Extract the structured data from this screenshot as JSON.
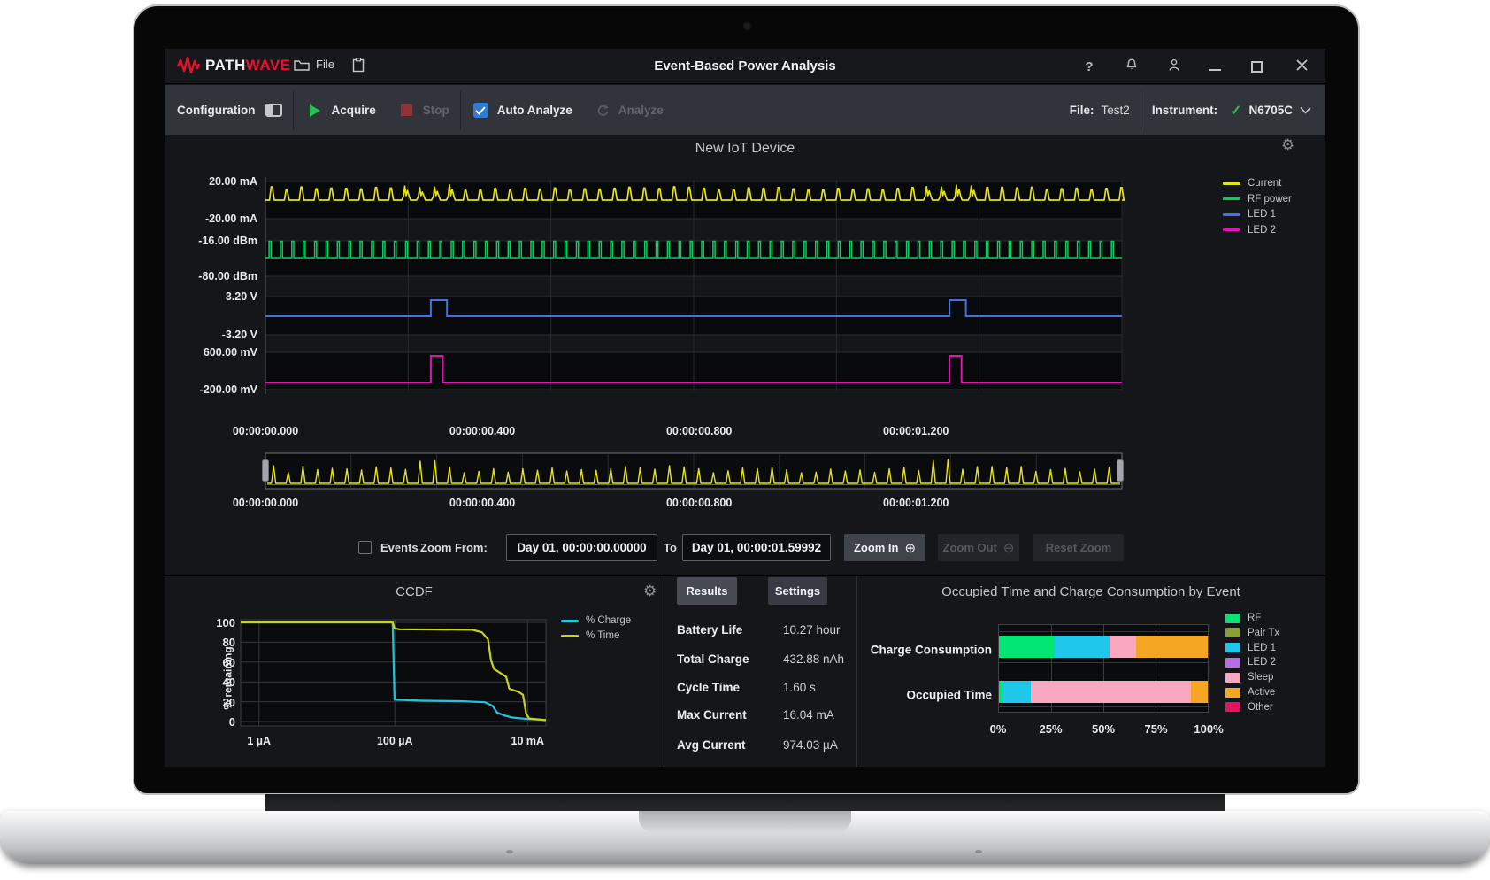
{
  "titlebar": {
    "logo_text_1": "PATH",
    "logo_text_2": "WAVE",
    "file_menu": "File",
    "title": "Event-Based Power Analysis",
    "help_label": "?"
  },
  "toolbar": {
    "configuration": "Configuration",
    "acquire": "Acquire",
    "stop": "Stop",
    "auto_analyze": "Auto Analyze",
    "analyze": "Analyze",
    "file_label": "File:",
    "file_value": "Test2",
    "instrument_label": "Instrument:",
    "instrument_value": "N6705C"
  },
  "scope": {
    "title": "New IoT Device",
    "y_axis_labels": [
      "20.00 mA",
      "-20.00 mA",
      "-16.00 dBm",
      "-80.00 dBm",
      "3.20 V",
      "-3.20 V",
      "600.00 mV",
      "-200.00 mV"
    ],
    "x_axis_labels": [
      "00:00:00.000",
      "00:00:00.400",
      "00:00:00.800",
      "00:00:01.200"
    ],
    "legend": [
      {
        "label": "Current",
        "color": "#e3e31c"
      },
      {
        "label": "RF power",
        "color": "#0fcb62"
      },
      {
        "label": "LED 1",
        "color": "#4273de"
      },
      {
        "label": "LED 2",
        "color": "#e211b9"
      }
    ]
  },
  "overview": {
    "x_axis_labels": [
      "00:00:00.000",
      "00:00:00.400",
      "00:00:00.800",
      "00:00:01.200"
    ]
  },
  "zoom_controls": {
    "events_label": "Events",
    "from_label": "Zoom From:",
    "from_value": "Day 01, 00:00:00.00000",
    "to_label": "To",
    "to_value": "Day 01, 00:00:01.59992",
    "zoom_in_label": "Zoom In",
    "zoom_out_label": "Zoom Out",
    "reset_label": "Reset Zoom"
  },
  "ccdf": {
    "title": "CCDF",
    "y_axis_title": "% remaining",
    "y_ticks": [
      "100",
      "80",
      "60",
      "40",
      "20",
      "0"
    ],
    "x_ticks": [
      "1 µA",
      "100 µA",
      "10 mA"
    ],
    "legend": [
      {
        "label": "% Charge",
        "color": "#23c4da"
      },
      {
        "label": "% Time",
        "color": "#c9d418"
      }
    ]
  },
  "results": {
    "tabs": [
      {
        "label": "Results"
      },
      {
        "label": "Settings"
      }
    ],
    "rows": [
      {
        "label": "Battery Life",
        "value": "10.27 hour"
      },
      {
        "label": "Total Charge",
        "value": "432.88 nAh"
      },
      {
        "label": "Cycle Time",
        "value": "1.60 s"
      },
      {
        "label": "Max Current",
        "value": "16.04 mA"
      },
      {
        "label": "Avg Current",
        "value": "974.03 µA"
      }
    ]
  },
  "event_chart": {
    "title": "Occupied Time and Charge Consumption by Event",
    "categories": [
      "Charge Consumption",
      "Occupied Time"
    ],
    "x_ticks": [
      "0%",
      "25%",
      "50%",
      "75%",
      "100%"
    ]
  },
  "chart_data": [
    {
      "id": "scope",
      "type": "line",
      "title": "New IoT Device",
      "x_range_s": [
        0,
        1.58
      ],
      "x_tick_values_s": [
        0,
        0.4,
        0.8,
        1.2
      ],
      "x_tick_labels": [
        "00:00:00.000",
        "00:00:00.400",
        "00:00:00.800",
        "00:00:01.200"
      ],
      "signals": [
        {
          "name": "Current",
          "color": "#e3e31c",
          "axis_top": "20.00 mA",
          "axis_bottom": "-20.00 mA",
          "shape": "spike-train",
          "period_s": 0.0275,
          "baseline_mA": 1.0,
          "peak_mA": 16.04,
          "burst_times_s": [
            0.3,
            1.26
          ]
        },
        {
          "name": "RF power",
          "color": "#0fcb62",
          "axis_top": "-16.00 dBm",
          "axis_bottom": "-80.00 dBm",
          "shape": "pulse-train",
          "period_s": 0.021,
          "baseline_dBm": -48,
          "peak_dBm": -17,
          "pulse_width_s": 0.0035
        },
        {
          "name": "LED 1",
          "color": "#4273de",
          "axis_top": "3.20 V",
          "axis_bottom": "-3.20 V",
          "shape": "level-pulses",
          "baseline_V": 0,
          "pulse_V": 2.9,
          "pulses_s": [
            [
              0.305,
              0.335
            ],
            [
              1.262,
              1.292
            ]
          ]
        },
        {
          "name": "LED 2",
          "color": "#e211b9",
          "axis_top": "600.00 mV",
          "axis_bottom": "-200.00 mV",
          "shape": "level-pulses",
          "baseline_mV": 0,
          "pulse_mV": 580,
          "pulses_s": [
            [
              0.305,
              0.327
            ],
            [
              1.262,
              1.284
            ]
          ]
        }
      ]
    },
    {
      "id": "overview",
      "type": "line",
      "signal": "Current",
      "color": "#e3e31c",
      "x_range_s": [
        0,
        1.6
      ],
      "period_s": 0.0275,
      "burst_times_s": [
        0.3,
        1.26
      ]
    },
    {
      "id": "ccdf",
      "type": "line",
      "x_scale": "log",
      "ylim": [
        0,
        100
      ],
      "x_tick_labels": [
        "1 µA",
        "100 µA",
        "10 mA"
      ],
      "series": [
        {
          "name": "% Charge",
          "color": "#23c4da",
          "points_pct_xy": [
            [
              0,
              100
            ],
            [
              49.8,
              100
            ],
            [
              50.4,
              22
            ],
            [
              60,
              21
            ],
            [
              72,
              20.5
            ],
            [
              80,
              19.5
            ],
            [
              82.5,
              16
            ],
            [
              84,
              9
            ],
            [
              86.5,
              6
            ],
            [
              89,
              4
            ],
            [
              94,
              2.5
            ],
            [
              100,
              1.5
            ]
          ]
        },
        {
          "name": "% Time",
          "color": "#c9d418",
          "points_pct_xy": [
            [
              0,
              100
            ],
            [
              49.8,
              100
            ],
            [
              50.4,
              94
            ],
            [
              52,
              93
            ],
            [
              76,
              92.5
            ],
            [
              79,
              90
            ],
            [
              81,
              83
            ],
            [
              82,
              62
            ],
            [
              83,
              53
            ],
            [
              85.5,
              48
            ],
            [
              87,
              45
            ],
            [
              88,
              33
            ],
            [
              91,
              30
            ],
            [
              92.5,
              27
            ],
            [
              93.5,
              8
            ],
            [
              94.5,
              3
            ],
            [
              100,
              1.5
            ]
          ]
        }
      ]
    },
    {
      "id": "events",
      "type": "bar",
      "stacked": true,
      "orientation": "horizontal",
      "xlim": [
        0,
        100
      ],
      "categories": [
        "Charge Consumption",
        "Occupied Time"
      ],
      "x_tick_labels": [
        "0%",
        "25%",
        "50%",
        "75%",
        "100%"
      ],
      "series": [
        {
          "name": "RF",
          "color": "#00e573",
          "values": [
            26.5,
            1.8
          ]
        },
        {
          "name": "Pair Tx",
          "color": "#8a9e33",
          "values": [
            0,
            0
          ]
        },
        {
          "name": "LED 1",
          "color": "#1fc8ea",
          "values": [
            26.3,
            13.4
          ]
        },
        {
          "name": "LED 2",
          "color": "#b36fe6",
          "values": [
            0,
            0
          ]
        },
        {
          "name": "Sleep",
          "color": "#f9a8c1",
          "values": [
            13.0,
            77.0
          ]
        },
        {
          "name": "Active",
          "color": "#f5a623",
          "values": [
            34.2,
            8.0
          ]
        },
        {
          "name": "Other",
          "color": "#ea1160",
          "values": [
            0,
            0
          ]
        }
      ]
    }
  ]
}
